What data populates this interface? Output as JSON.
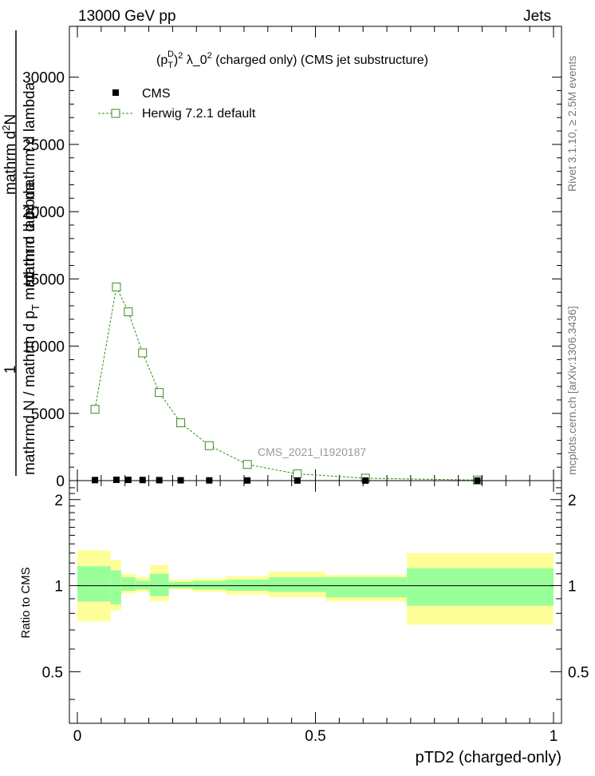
{
  "header": {
    "energy_label": "13000 GeV pp",
    "category_label": "Jets"
  },
  "side_labels": {
    "rivet": "Rivet 3.1.10, ≥ 2.5M events",
    "mcplots": "mcplots.cern.ch [arXiv:1306.3436]"
  },
  "colors": {
    "cms": "#000000",
    "herwig": "#3a8c1a",
    "band_outer": "#ffff99",
    "band_inner": "#99ff99"
  },
  "chart_data": [
    {
      "type": "line",
      "title_parts": {
        "open": "(p",
        "sub": "T",
        "sup_d": "D",
        "close": ")",
        "sup_2": "2",
        "lambda": " λ_0",
        "rest": " (charged only) (CMS jet substructure)"
      },
      "ylabel_parts": {
        "one": "1",
        "denominator": "mathrmd N / mathrm d p",
        "denom_sub": "T",
        "denom_tail": " mathrm d lambda",
        "numerator_line1": "mathrm d",
        "numerator_sup": "2",
        "numerator_N": "N",
        "numerator_line2": "mathrm d p",
        "numerator_sub": "T",
        "numerator_tail": " mathrm d lambda"
      },
      "analysis_label": "CMS_2021_I1920187",
      "xlim": [
        0,
        1
      ],
      "ylim": [
        0,
        32000
      ],
      "yticks": [
        0,
        5000,
        10000,
        15000,
        20000,
        25000,
        30000
      ],
      "ytick_labels": [
        "0",
        "5000",
        "10000",
        "15000",
        "20000",
        "25000",
        "30000"
      ],
      "legend": {
        "position": "top-left",
        "cms_label": "CMS",
        "herwig_label": "Herwig 7.2.1 default"
      },
      "series": [
        {
          "name": "CMS",
          "x": [
            0.037,
            0.082,
            0.107,
            0.137,
            0.172,
            0.217,
            0.277,
            0.357,
            0.462,
            0.605,
            0.84
          ],
          "values": [
            40,
            60,
            55,
            45,
            35,
            25,
            18,
            12,
            8,
            4,
            2
          ]
        },
        {
          "name": "Herwig 7.2.1 default",
          "x": [
            0.037,
            0.082,
            0.107,
            0.137,
            0.172,
            0.217,
            0.277,
            0.357,
            0.462,
            0.605,
            0.84
          ],
          "values": [
            5300,
            14400,
            12550,
            9500,
            6550,
            4300,
            2600,
            1200,
            500,
            180,
            40
          ]
        }
      ]
    },
    {
      "type": "area",
      "ylabel": "Ratio to CMS",
      "xlabel": "pTD2 (charged-only)",
      "xlim": [
        0,
        1
      ],
      "ylim": [
        0.33,
        2.33
      ],
      "yticks": [
        0.5,
        1,
        2
      ],
      "ytick_labels": [
        "0.5",
        "1",
        "2"
      ],
      "xticks": [
        0,
        0.5,
        1
      ],
      "xtick_labels": [
        "0",
        "0.5",
        "1"
      ],
      "bins": [
        {
          "lo": 0.0,
          "hi": 0.07,
          "inner": [
            0.88,
            1.17
          ],
          "outer": [
            0.75,
            1.33
          ]
        },
        {
          "lo": 0.07,
          "hi": 0.092,
          "inner": [
            0.86,
            1.13
          ],
          "outer": [
            0.82,
            1.23
          ]
        },
        {
          "lo": 0.092,
          "hi": 0.122,
          "inner": [
            0.96,
            1.07
          ],
          "outer": [
            0.94,
            1.1
          ]
        },
        {
          "lo": 0.122,
          "hi": 0.152,
          "inner": [
            0.97,
            1.04
          ],
          "outer": [
            0.95,
            1.07
          ]
        },
        {
          "lo": 0.152,
          "hi": 0.192,
          "inner": [
            0.92,
            1.1
          ],
          "outer": [
            0.88,
            1.18
          ]
        },
        {
          "lo": 0.192,
          "hi": 0.242,
          "inner": [
            0.98,
            1.03
          ],
          "outer": [
            0.97,
            1.05
          ]
        },
        {
          "lo": 0.242,
          "hi": 0.312,
          "inner": [
            0.97,
            1.04
          ],
          "outer": [
            0.95,
            1.06
          ]
        },
        {
          "lo": 0.312,
          "hi": 0.402,
          "inner": [
            0.96,
            1.05
          ],
          "outer": [
            0.93,
            1.08
          ]
        },
        {
          "lo": 0.402,
          "hi": 0.522,
          "inner": [
            0.95,
            1.07
          ],
          "outer": [
            0.91,
            1.12
          ]
        },
        {
          "lo": 0.522,
          "hi": 0.692,
          "inner": [
            0.91,
            1.07
          ],
          "outer": [
            0.88,
            1.09
          ]
        },
        {
          "lo": 0.692,
          "hi": 1.0,
          "inner": [
            0.85,
            1.15
          ],
          "outer": [
            0.73,
            1.3
          ]
        }
      ],
      "series": [
        {
          "name": "Herwig 7.2.1 default",
          "values": [
            1,
            1,
            1,
            1,
            1,
            1,
            1,
            1,
            1,
            1,
            1
          ]
        }
      ]
    }
  ]
}
